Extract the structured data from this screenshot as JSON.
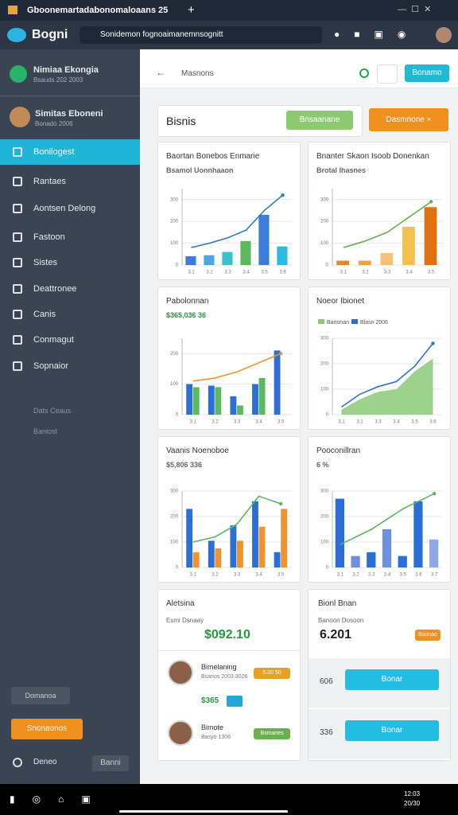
{
  "ui": {
    "tab_title": "Gboonemartadabonomaloaans 25",
    "logo": "Bogni",
    "url": "Sonidemon fognoaimanemnsognitt",
    "org_name": "Nimiaa Ekongia",
    "org_sub": "Bsauds 202 2003",
    "user_name": "Simitas Eboneni",
    "user_sub": "Bonado 2006",
    "menu": [
      "Bonilogest",
      "Rantaes",
      "Aontsen Delong",
      "Fastoon",
      "Sistes",
      "Deattronee",
      "Canis",
      "Conmagut",
      "Sopnaior"
    ],
    "menu_extra": [
      "Dats Ceaus",
      "Baniost"
    ],
    "side_btn_grey": "Domanoa",
    "side_btn_orange": "Snonaonos",
    "side_foot": "Deneo",
    "side_foot_btn": "Banni",
    "page_title": "Masnons",
    "header_btn": "Bonamo",
    "section_title": "Bisnis",
    "green_btn": "Bnsaanane",
    "orange_btn": "Dasmnone",
    "card_left": {
      "title": "Aletsina",
      "subtitle": "Esmi  Dsnaay",
      "amount": "$092.10",
      "people": [
        {
          "name": "Bimelaning",
          "sub": "Bsanos 2003 3026",
          "badge": "5.00 50"
        },
        {
          "name": "Bimote",
          "sub": "Basyo 1306",
          "badge": "Bsmanes"
        }
      ],
      "mid_value": "$365"
    },
    "card_right": {
      "title": "Bionl Bnan",
      "subtitle": "Banoon Dosoon",
      "amount": "6.201",
      "badge": "Bsonao",
      "rows": [
        {
          "value": "606",
          "button": "Bonar"
        },
        {
          "value": "336",
          "button": "Bonar"
        }
      ]
    },
    "taskbar_time": "12:03",
    "taskbar_date": "20/30"
  },
  "chart_data": [
    {
      "type": "combo",
      "title": "Baortan Bonebos Enmarie",
      "note": "Bsamol Uonnhaaon",
      "categories": [
        "3.1",
        "3.2",
        "3.3",
        "3.4",
        "3.5",
        "3.6"
      ],
      "bars": [
        {
          "values": [
            40,
            45,
            60,
            110,
            230,
            85
          ],
          "colors": [
            "#3b7dd8",
            "#4aa8e8",
            "#3cc2c9",
            "#5cb85c",
            "#3b7dd8",
            "#2bbbe0"
          ]
        }
      ],
      "line": {
        "values": [
          80,
          100,
          125,
          160,
          250,
          320
        ],
        "color": "#2e7bc4"
      },
      "ylim": [
        0,
        350
      ],
      "yticks": [
        0,
        100,
        200,
        300
      ]
    },
    {
      "type": "combo",
      "title": "Bnanter Skaon Isoob Donenkan",
      "note": "Brotal Ihasnes",
      "categories": [
        "3.1",
        "3.2",
        "3.3",
        "3.4",
        "3.5"
      ],
      "bars": [
        {
          "values": [
            20,
            20,
            55,
            175,
            265
          ],
          "colors": [
            "#e08a2a",
            "#f0a040",
            "#f5c27a",
            "#f5c050",
            "#e07010"
          ]
        }
      ],
      "line": {
        "values": [
          80,
          110,
          150,
          220,
          290
        ],
        "color": "#6ab04c"
      },
      "ylim": [
        0,
        350
      ],
      "yticks": [
        0,
        100,
        200,
        300
      ]
    },
    {
      "type": "combo",
      "title": "Pabolonnan",
      "note": "$365,036 36",
      "categories": [
        "3.1",
        "3.2",
        "3.3",
        "3.4",
        "3.5"
      ],
      "bars": [
        {
          "values": [
            100,
            95,
            60,
            100,
            210
          ],
          "color": "#2a6fd6"
        },
        {
          "values": [
            90,
            90,
            30,
            120,
            0
          ],
          "color": "#5cb85c"
        }
      ],
      "line": {
        "values": [
          110,
          120,
          140,
          170,
          200
        ],
        "color": "#f0922e"
      },
      "ylim": [
        0,
        250
      ],
      "yticks": [
        0,
        100,
        200
      ]
    },
    {
      "type": "area",
      "title": "Noeor Ibionet",
      "categories": [
        "3.1",
        "3.2",
        "3.3",
        "3.4",
        "3.5",
        "3.6"
      ],
      "series": [
        {
          "name": "Banonan",
          "color": "#8cc97a",
          "values": [
            20,
            60,
            90,
            100,
            170,
            220
          ]
        },
        {
          "name": "Blasn 2006",
          "color": "#2a6fd6",
          "values": [
            30,
            80,
            110,
            130,
            190,
            280
          ]
        }
      ],
      "ylim": [
        0,
        300
      ],
      "yticks": [
        0,
        100,
        200,
        300
      ]
    },
    {
      "type": "combo",
      "title": "Vaanis Noenoboe",
      "note": "$5,806 336",
      "categories": [
        "3.1",
        "3.2",
        "3.3",
        "3.4",
        "3.5"
      ],
      "bars": [
        {
          "values": [
            230,
            105,
            165,
            260,
            60
          ],
          "color": "#2a6fd6"
        },
        {
          "values": [
            60,
            75,
            105,
            160,
            230
          ],
          "color": "#f0922e"
        }
      ],
      "line": {
        "values": [
          100,
          120,
          170,
          280,
          250
        ],
        "color": "#5cb85c"
      },
      "ylim": [
        0,
        300
      ],
      "yticks": [
        0,
        100,
        200,
        300
      ]
    },
    {
      "type": "combo",
      "title": "Pooconillran",
      "note": "6 %",
      "categories": [
        "3.1",
        "3.2",
        "3.3",
        "3.4",
        "3.5",
        "3.6",
        "3.7"
      ],
      "bars": [
        {
          "values": [
            270,
            45,
            60,
            150,
            45,
            260,
            110
          ],
          "colors": [
            "#2a6fd6",
            "#6f8fe0",
            "#2a6fd6",
            "#6f8fe0",
            "#2a6fd6",
            "#2a6fd6",
            "#8ea8e8"
          ]
        }
      ],
      "line": {
        "values": [
          90,
          120,
          150,
          190,
          230,
          260,
          290
        ],
        "color": "#5cb85c"
      },
      "ylim": [
        0,
        300
      ],
      "yticks": [
        0,
        100,
        200,
        300
      ]
    }
  ]
}
